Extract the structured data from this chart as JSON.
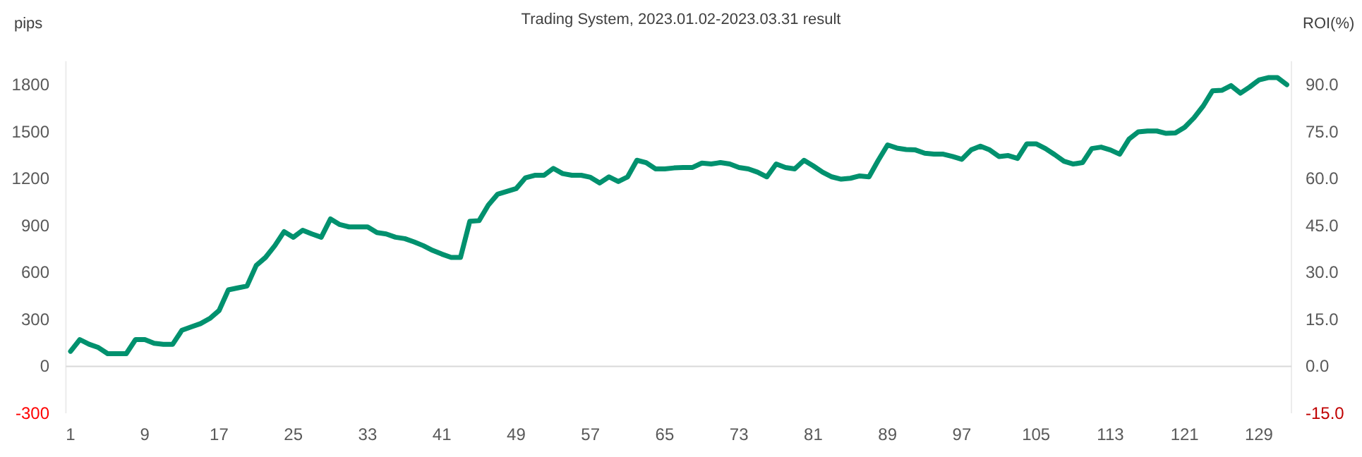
{
  "chart_data": {
    "type": "line",
    "title": "Trading System, 2023.01.02-2023.03.31 result",
    "ylabel": "pips",
    "y2label": "ROI(%)",
    "x": [
      1,
      2,
      3,
      4,
      5,
      6,
      7,
      8,
      9,
      10,
      11,
      12,
      13,
      14,
      15,
      16,
      17,
      18,
      19,
      20,
      21,
      22,
      23,
      24,
      25,
      26,
      27,
      28,
      29,
      30,
      31,
      32,
      33,
      34,
      35,
      36,
      37,
      38,
      39,
      40,
      41,
      42,
      43,
      44,
      45,
      46,
      47,
      48,
      49,
      50,
      51,
      52,
      53,
      54,
      55,
      56,
      57,
      58,
      59,
      60,
      61,
      62,
      63,
      64,
      65,
      66,
      67,
      68,
      69,
      70,
      71,
      72,
      73,
      74,
      75,
      76,
      77,
      78,
      79,
      80,
      81,
      82,
      83,
      84,
      85,
      86,
      87,
      88,
      89,
      90,
      91,
      92,
      93,
      94,
      95,
      96,
      97,
      98,
      99,
      100,
      101,
      102,
      103,
      104,
      105,
      106,
      107,
      108,
      109,
      110,
      111,
      112,
      113,
      114,
      115,
      116,
      117,
      118,
      119,
      120,
      121,
      122,
      123,
      124,
      125,
      126,
      127,
      128,
      129,
      130,
      131,
      132
    ],
    "series": [
      {
        "color": "#00916e",
        "values": [
          96,
          171,
          141,
          120,
          81,
          81,
          81,
          171,
          171,
          147,
          141,
          141,
          231,
          252,
          273,
          306,
          357,
          489,
          501,
          513,
          645,
          696,
          771,
          861,
          825,
          870,
          846,
          825,
          942,
          906,
          891,
          891,
          891,
          855,
          846,
          825,
          816,
          795,
          771,
          741,
          717,
          696,
          696,
          927,
          931,
          1031,
          1100,
          1118,
          1136,
          1205,
          1221,
          1221,
          1265,
          1232,
          1221,
          1221,
          1208,
          1172,
          1211,
          1181,
          1211,
          1317,
          1302,
          1262,
          1262,
          1268,
          1271,
          1271,
          1299,
          1293,
          1302,
          1293,
          1271,
          1262,
          1241,
          1211,
          1293,
          1271,
          1262,
          1317,
          1281,
          1241,
          1211,
          1196,
          1202,
          1217,
          1211,
          1317,
          1415,
          1395,
          1386,
          1383,
          1362,
          1356,
          1356,
          1341,
          1323,
          1383,
          1407,
          1383,
          1341,
          1347,
          1329,
          1422,
          1422,
          1392,
          1353,
          1311,
          1293,
          1302,
          1392,
          1401,
          1383,
          1356,
          1452,
          1498,
          1504,
          1504,
          1489,
          1492,
          1528,
          1588,
          1664,
          1761,
          1764,
          1794,
          1746,
          1785,
          1830,
          1845,
          1845,
          1800
        ]
      }
    ],
    "xlim": [
      0.5,
      132.5
    ],
    "xticks": [
      1,
      9,
      17,
      25,
      33,
      41,
      49,
      57,
      65,
      73,
      81,
      89,
      97,
      105,
      113,
      121,
      129
    ],
    "ylim": [
      -300,
      1950
    ],
    "yticks": [
      -300,
      0,
      300,
      600,
      900,
      1200,
      1500,
      1800
    ],
    "y2lim": [
      -15,
      97.5
    ],
    "y2ticks": [
      {
        "value": -15,
        "label": "-15.0"
      },
      {
        "value": 0,
        "label": "0.0"
      },
      {
        "value": 15,
        "label": "15.0"
      },
      {
        "value": 30,
        "label": "30.0"
      },
      {
        "value": 45,
        "label": "45.0"
      },
      {
        "value": 60,
        "label": "60.0"
      },
      {
        "value": 75,
        "label": "75.0"
      },
      {
        "value": 90,
        "label": "90.0"
      }
    ],
    "ref_lines": [
      {
        "axis": "y",
        "value": 0,
        "color": "#d9d9d9"
      }
    ],
    "grid": false,
    "marker": "none",
    "line_style": "solid"
  }
}
